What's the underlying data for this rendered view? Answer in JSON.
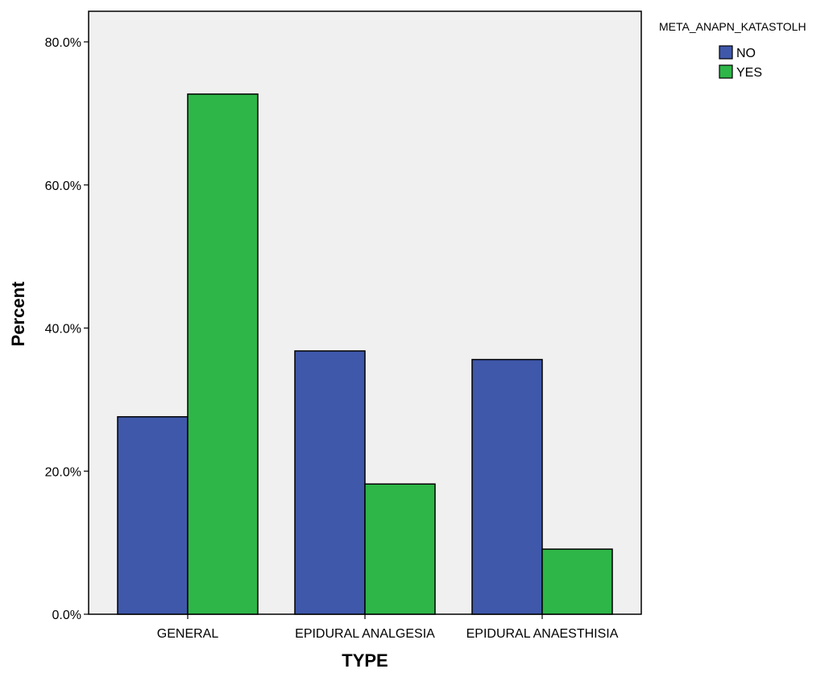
{
  "chart_data": {
    "type": "bar",
    "title": "",
    "xlabel": "TYPE",
    "ylabel": "Percent",
    "categories": [
      "GENERAL",
      "EPIDURAL ANALGESIA",
      "EPIDURAL ANAESTHISIA"
    ],
    "series": [
      {
        "name": "NO",
        "color": "#3f58aa",
        "values": [
          27.6,
          36.8,
          35.6
        ]
      },
      {
        "name": "YES",
        "color": "#2eb648",
        "values": [
          72.7,
          18.2,
          9.1
        ]
      }
    ],
    "ylim": [
      0,
      80
    ],
    "yticks": [
      0,
      20,
      40,
      60,
      80
    ],
    "ytick_labels": [
      "0.0%",
      "20.0%",
      "40.0%",
      "60.0%",
      "80.0%"
    ],
    "legend": {
      "title": "META_ANAPN_KATASTOLH",
      "placement": "top-right outside"
    },
    "plot_background": "#f0f0f0",
    "grid": false
  }
}
